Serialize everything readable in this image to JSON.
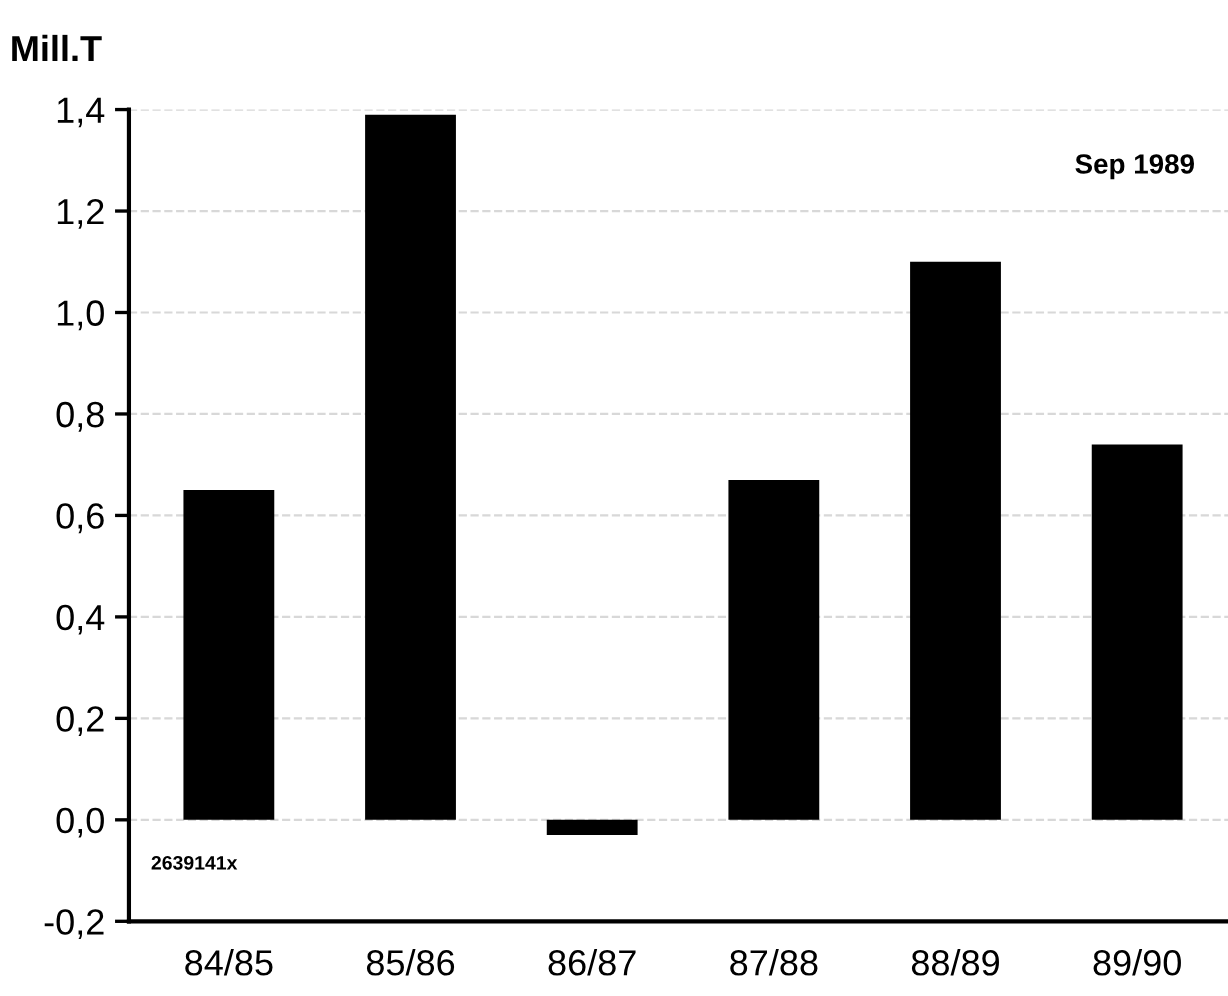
{
  "chart_data": {
    "type": "bar",
    "ylabel": "Mill.T",
    "categories": [
      "84/85",
      "85/86",
      "86/87",
      "87/88",
      "88/89",
      "89/90"
    ],
    "values": [
      0.65,
      1.39,
      -0.03,
      0.67,
      1.1,
      0.74
    ],
    "color": "#000000",
    "ylim": [
      -0.2,
      1.4
    ],
    "yticks": [
      {
        "value": -0.2,
        "label": "-0,2"
      },
      {
        "value": 0,
        "label": "0,0"
      },
      {
        "value": 0.2,
        "label": "0,2"
      },
      {
        "value": 0.4,
        "label": "0,4"
      },
      {
        "value": 0.6,
        "label": "0,6"
      },
      {
        "value": 0.8,
        "label": "0,8"
      },
      {
        "value": 1.0,
        "label": "1,0"
      },
      {
        "value": 1.2,
        "label": "1,2"
      },
      {
        "value": 1.4,
        "label": "1,4"
      }
    ],
    "grid": "y",
    "annotations": [
      "Sep 1989",
      "2639141x"
    ]
  }
}
